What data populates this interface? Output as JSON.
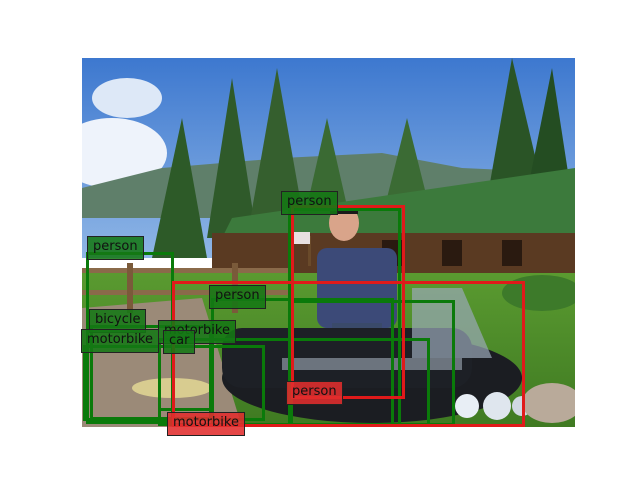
{
  "colors": {
    "ground_truth": "#0a7a0a",
    "prediction": "#e01a1a",
    "sky": "#4f86d6",
    "grass": "#4f8f2a",
    "roof": "#3c7a3c"
  },
  "detections": [
    {
      "label": "person",
      "kind": "gt"
    },
    {
      "label": "person",
      "kind": "gt"
    },
    {
      "label": "person",
      "kind": "gt"
    },
    {
      "label": "bicycle",
      "kind": "gt"
    },
    {
      "label": "motorbike",
      "kind": "gt"
    },
    {
      "label": "motorbike",
      "kind": "gt"
    },
    {
      "label": "car",
      "kind": "gt"
    },
    {
      "label": "person",
      "kind": "pred"
    },
    {
      "label": "motorbike",
      "kind": "pred"
    }
  ]
}
